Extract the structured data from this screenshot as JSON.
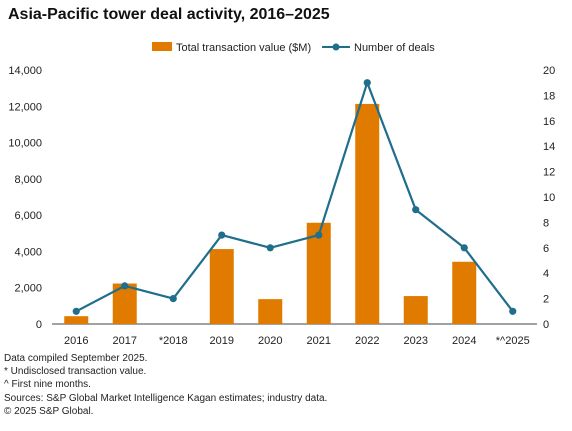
{
  "chart_data": {
    "type": "bar",
    "title": "Asia-Pacific tower deal activity, 2016–2025",
    "categories": [
      "2016",
      "2017",
      "*2018",
      "2019",
      "2020",
      "2021",
      "2022",
      "2023",
      "2024",
      "*^2025"
    ],
    "series": [
      {
        "name": "Total transaction value ($M)",
        "type": "bar",
        "axis": "left",
        "color": "#E07B00",
        "values": [
          430,
          2230,
          0,
          4130,
          1370,
          5580,
          12130,
          1540,
          3430,
          0
        ]
      },
      {
        "name": "Number of deals",
        "type": "line",
        "axis": "right",
        "color": "#1F6E8C",
        "values": [
          1,
          3,
          2,
          7,
          6,
          7,
          19,
          9,
          6,
          1
        ]
      }
    ],
    "y_left": {
      "ylim": [
        0,
        14000
      ],
      "ticks": [
        "0",
        "2,000",
        "4,000",
        "6,000",
        "8,000",
        "10,000",
        "12,000",
        "14,000"
      ]
    },
    "y_right": {
      "ylim": [
        0,
        20
      ],
      "ticks": [
        "0",
        "2",
        "4",
        "6",
        "8",
        "10",
        "12",
        "14",
        "16",
        "18",
        "20"
      ]
    },
    "grid": false,
    "legend_position": "top"
  },
  "notes": [
    "Data compiled September 2025.",
    "* Undisclosed transaction value.",
    "^ First nine months.",
    "Sources: S&P Global Market Intelligence Kagan estimates; industry data.",
    "© 2025 S&P Global."
  ]
}
